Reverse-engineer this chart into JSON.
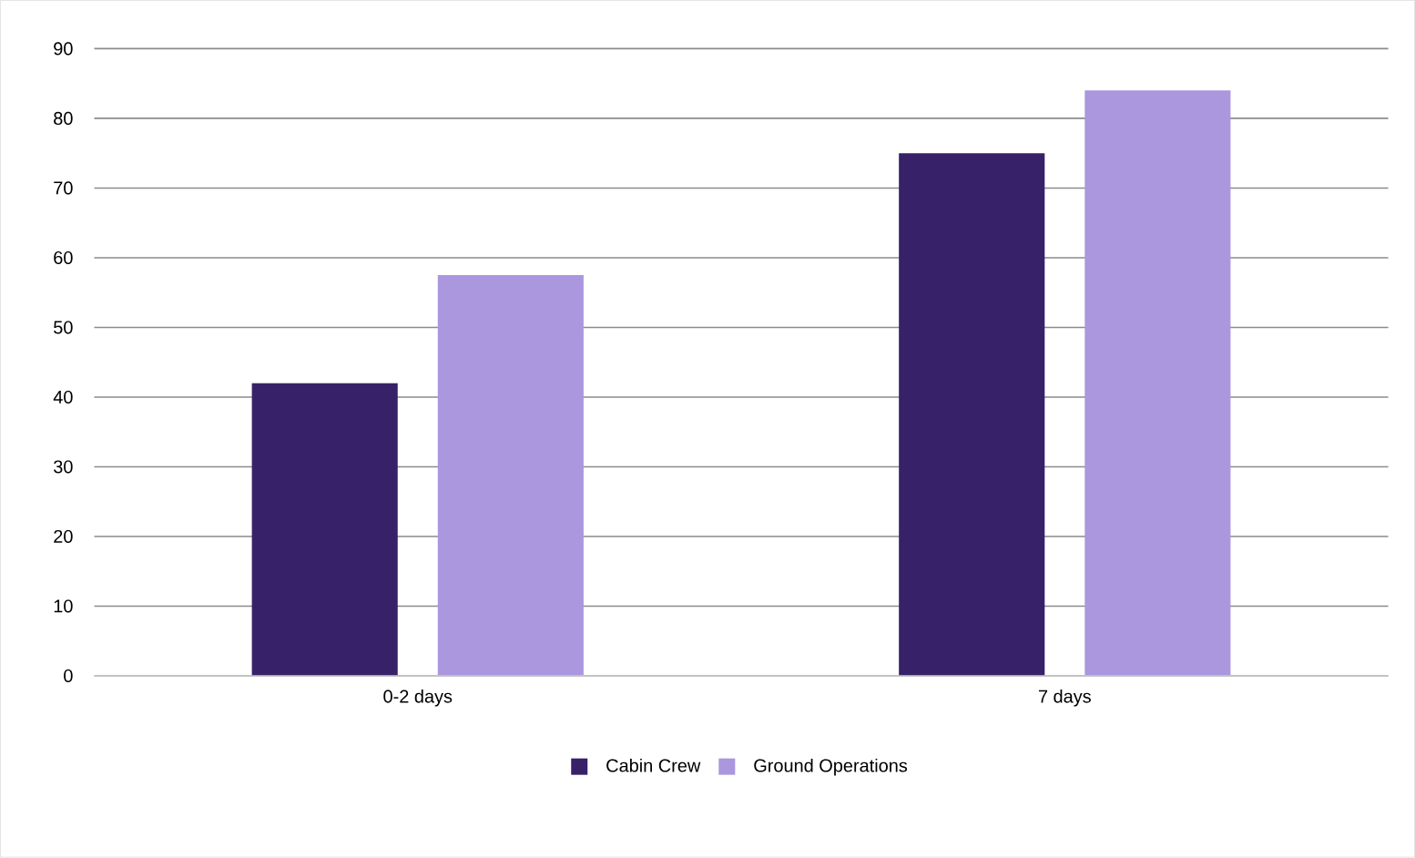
{
  "chart_data": {
    "type": "bar",
    "categories": [
      "0-2 days",
      "7 days"
    ],
    "series": [
      {
        "name": "Cabin Crew",
        "color": "#372168",
        "values": [
          42,
          75
        ]
      },
      {
        "name": "Ground Operations",
        "color": "#aa97de",
        "values": [
          57.5,
          84
        ]
      }
    ],
    "ylim": [
      0,
      90
    ],
    "yticks": [
      0,
      10,
      20,
      30,
      40,
      50,
      60,
      70,
      80,
      90
    ],
    "grid": "y",
    "legend": "bottom"
  }
}
